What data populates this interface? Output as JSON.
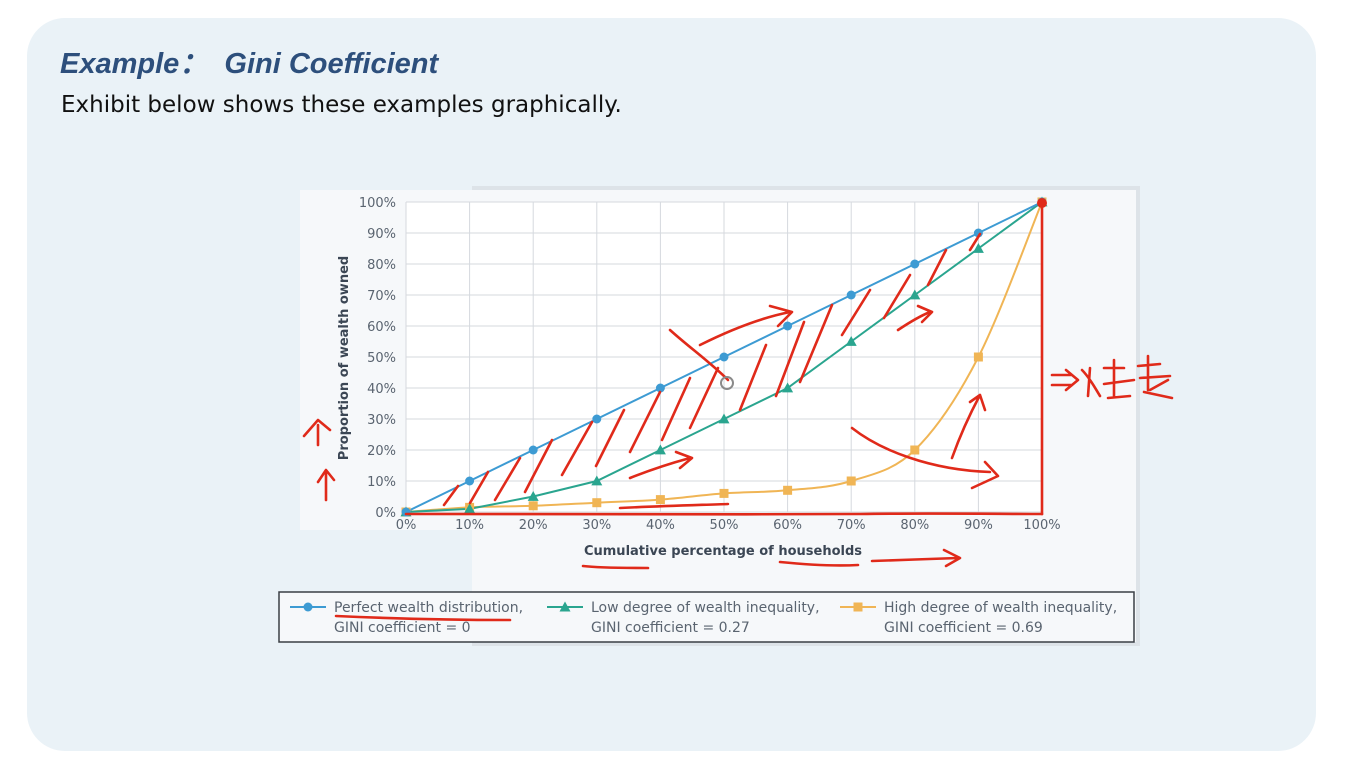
{
  "slide": {
    "title": "Example：  Gini Coefficient",
    "subtitle": "Exhibit below shows these examples graphically."
  },
  "colors": {
    "perfect": "#3d9bd3",
    "low": "#2aa58f",
    "high": "#f0b555",
    "annotation": "#e02a1a",
    "grid": "#d5d9de",
    "tick_text": "#5a6470"
  },
  "chart_data": {
    "type": "line",
    "xlabel": "Cumulative percentage of households",
    "ylabel": "Proportion of wealth owned",
    "x": [
      0,
      10,
      20,
      30,
      40,
      50,
      60,
      70,
      80,
      90,
      100
    ],
    "x_tick_labels": [
      "0%",
      "10%",
      "20%",
      "30%",
      "40%",
      "50%",
      "60%",
      "70%",
      "80%",
      "90%",
      "100%"
    ],
    "y_tick_labels": [
      "0%",
      "10%",
      "20%",
      "30%",
      "40%",
      "50%",
      "60%",
      "70%",
      "80%",
      "90%",
      "100%"
    ],
    "xlim": [
      0,
      100
    ],
    "ylim": [
      0,
      100
    ],
    "grid": true,
    "legend_position": "bottom",
    "series": [
      {
        "name": "Perfect wealth distribution, GINI coefficient = 0",
        "legend_line1": "Perfect wealth distribution,",
        "legend_line2": "GINI coefficient = 0",
        "marker": "circle",
        "values": [
          0,
          10,
          20,
          30,
          40,
          50,
          60,
          70,
          80,
          90,
          100
        ]
      },
      {
        "name": "Low degree of wealth inequality, GINI coefficient = 0.27",
        "legend_line1": "Low degree of wealth inequality,",
        "legend_line2": "GINI coefficient = 0.27",
        "marker": "triangle",
        "values": [
          0,
          1,
          5,
          10,
          20,
          30,
          40,
          55,
          70,
          85,
          100
        ]
      },
      {
        "name": "High degree of wealth inequality, GINI coefficient = 0.69",
        "legend_line1": "High degree of wealth inequality,",
        "legend_line2": "GINI coefficient = 0.69",
        "marker": "square",
        "values": [
          0,
          1.5,
          2,
          3,
          4,
          6,
          7,
          10,
          20,
          50,
          100
        ]
      }
    ],
    "annotations": [
      {
        "type": "handwritten",
        "text": "=>不均等"
      }
    ]
  }
}
